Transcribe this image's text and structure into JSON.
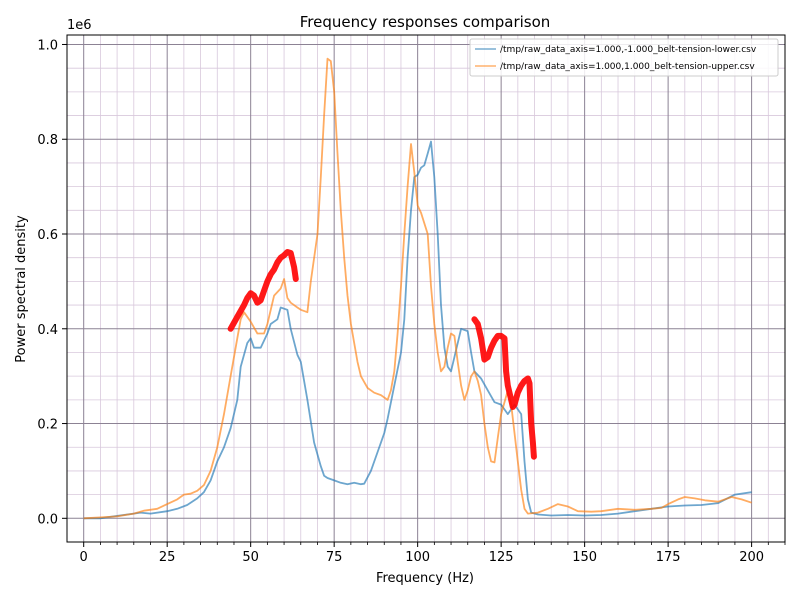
{
  "chart_data": {
    "type": "line",
    "title": "Frequency responses comparison",
    "xlabel": "Frequency (Hz)",
    "ylabel": "Power spectral density",
    "y_offset_label": "1e6",
    "xlim": [
      -5,
      210
    ],
    "ylim": [
      -0.05,
      1.02
    ],
    "xticks": [
      0,
      25,
      50,
      75,
      100,
      125,
      150,
      175,
      200
    ],
    "yticks": [
      0.0,
      0.2,
      0.4,
      0.6,
      0.8,
      1.0
    ],
    "xticklabels": [
      "0",
      "25",
      "50",
      "75",
      "100",
      "125",
      "150",
      "175",
      "200"
    ],
    "yticklabels": [
      "0.0",
      "0.2",
      "0.4",
      "0.6",
      "0.8",
      "1.0"
    ],
    "x_minor_step": 5,
    "y_minor_step": 0.05,
    "grid": true,
    "legend_position": "top-right",
    "series": [
      {
        "name": "/tmp/raw_data_axis=1.000,-1.000_belt-tension-lower.csv",
        "color": "#1f77b4",
        "points": [
          [
            0,
            0.0
          ],
          [
            5,
            0.0
          ],
          [
            10,
            0.005
          ],
          [
            15,
            0.01
          ],
          [
            17,
            0.012
          ],
          [
            20,
            0.01
          ],
          [
            25,
            0.015
          ],
          [
            28,
            0.02
          ],
          [
            31,
            0.028
          ],
          [
            34,
            0.042
          ],
          [
            36,
            0.055
          ],
          [
            38,
            0.08
          ],
          [
            40,
            0.12
          ],
          [
            42,
            0.15
          ],
          [
            44,
            0.19
          ],
          [
            46,
            0.25
          ],
          [
            47,
            0.32
          ],
          [
            49,
            0.37
          ],
          [
            50,
            0.38
          ],
          [
            51,
            0.36
          ],
          [
            53,
            0.36
          ],
          [
            55,
            0.39
          ],
          [
            56,
            0.41
          ],
          [
            58,
            0.42
          ],
          [
            59,
            0.445
          ],
          [
            61,
            0.44
          ],
          [
            62,
            0.4
          ],
          [
            64,
            0.345
          ],
          [
            65,
            0.33
          ],
          [
            67,
            0.25
          ],
          [
            69,
            0.16
          ],
          [
            71,
            0.11
          ],
          [
            72,
            0.09
          ],
          [
            73,
            0.085
          ],
          [
            75,
            0.08
          ],
          [
            77,
            0.075
          ],
          [
            79,
            0.072
          ],
          [
            81,
            0.075
          ],
          [
            83,
            0.072
          ],
          [
            84,
            0.073
          ],
          [
            86,
            0.1
          ],
          [
            88,
            0.14
          ],
          [
            90,
            0.18
          ],
          [
            91,
            0.21
          ],
          [
            93,
            0.28
          ],
          [
            95,
            0.35
          ],
          [
            96,
            0.42
          ],
          [
            97,
            0.55
          ],
          [
            98,
            0.65
          ],
          [
            99,
            0.72
          ],
          [
            100,
            0.725
          ],
          [
            101,
            0.74
          ],
          [
            102,
            0.745
          ],
          [
            103,
            0.77
          ],
          [
            104,
            0.795
          ],
          [
            105,
            0.72
          ],
          [
            106,
            0.6
          ],
          [
            107,
            0.45
          ],
          [
            108,
            0.36
          ],
          [
            109,
            0.32
          ],
          [
            110,
            0.31
          ],
          [
            111,
            0.34
          ],
          [
            113,
            0.4
          ],
          [
            115,
            0.395
          ],
          [
            116,
            0.35
          ],
          [
            117,
            0.31
          ],
          [
            119,
            0.295
          ],
          [
            121,
            0.27
          ],
          [
            123,
            0.245
          ],
          [
            125,
            0.24
          ],
          [
            127,
            0.22
          ],
          [
            129,
            0.24
          ],
          [
            131,
            0.22
          ],
          [
            132,
            0.12
          ],
          [
            133,
            0.04
          ],
          [
            134,
            0.012
          ],
          [
            136,
            0.008
          ],
          [
            140,
            0.006
          ],
          [
            145,
            0.007
          ],
          [
            150,
            0.006
          ],
          [
            155,
            0.007
          ],
          [
            160,
            0.01
          ],
          [
            165,
            0.015
          ],
          [
            170,
            0.02
          ],
          [
            175,
            0.025
          ],
          [
            180,
            0.027
          ],
          [
            185,
            0.028
          ],
          [
            190,
            0.032
          ],
          [
            195,
            0.05
          ],
          [
            200,
            0.055
          ]
        ]
      },
      {
        "name": "/tmp/raw_data_axis=1.000,1.000_belt-tension-upper.csv",
        "color": "#ff7f0e",
        "points": [
          [
            0,
            0.0
          ],
          [
            5,
            0.002
          ],
          [
            10,
            0.004
          ],
          [
            15,
            0.01
          ],
          [
            18,
            0.016
          ],
          [
            22,
            0.02
          ],
          [
            25,
            0.03
          ],
          [
            28,
            0.04
          ],
          [
            30,
            0.05
          ],
          [
            32,
            0.052
          ],
          [
            34,
            0.058
          ],
          [
            36,
            0.07
          ],
          [
            38,
            0.1
          ],
          [
            40,
            0.15
          ],
          [
            42,
            0.22
          ],
          [
            44,
            0.3
          ],
          [
            46,
            0.38
          ],
          [
            47,
            0.42
          ],
          [
            48,
            0.435
          ],
          [
            50,
            0.415
          ],
          [
            52,
            0.39
          ],
          [
            54,
            0.39
          ],
          [
            55,
            0.41
          ],
          [
            57,
            0.47
          ],
          [
            59,
            0.485
          ],
          [
            60,
            0.505
          ],
          [
            61,
            0.465
          ],
          [
            62,
            0.455
          ],
          [
            64,
            0.445
          ],
          [
            65,
            0.44
          ],
          [
            67,
            0.435
          ],
          [
            68,
            0.5
          ],
          [
            70,
            0.6
          ],
          [
            71,
            0.72
          ],
          [
            72,
            0.85
          ],
          [
            73,
            0.97
          ],
          [
            74,
            0.965
          ],
          [
            75,
            0.9
          ],
          [
            76,
            0.77
          ],
          [
            77,
            0.65
          ],
          [
            78,
            0.55
          ],
          [
            79,
            0.47
          ],
          [
            80,
            0.41
          ],
          [
            81,
            0.37
          ],
          [
            82,
            0.33
          ],
          [
            83,
            0.3
          ],
          [
            85,
            0.275
          ],
          [
            87,
            0.265
          ],
          [
            89,
            0.26
          ],
          [
            91,
            0.25
          ],
          [
            92,
            0.27
          ],
          [
            93,
            0.31
          ],
          [
            94,
            0.39
          ],
          [
            95,
            0.49
          ],
          [
            96,
            0.6
          ],
          [
            97,
            0.7
          ],
          [
            98,
            0.79
          ],
          [
            99,
            0.73
          ],
          [
            100,
            0.66
          ],
          [
            101,
            0.645
          ],
          [
            103,
            0.6
          ],
          [
            104,
            0.49
          ],
          [
            105,
            0.41
          ],
          [
            106,
            0.35
          ],
          [
            107,
            0.31
          ],
          [
            108,
            0.32
          ],
          [
            109,
            0.36
          ],
          [
            110,
            0.39
          ],
          [
            111,
            0.385
          ],
          [
            112,
            0.33
          ],
          [
            113,
            0.28
          ],
          [
            114,
            0.25
          ],
          [
            115,
            0.27
          ],
          [
            116,
            0.3
          ],
          [
            117,
            0.31
          ],
          [
            118,
            0.29
          ],
          [
            119,
            0.26
          ],
          [
            120,
            0.2
          ],
          [
            121,
            0.15
          ],
          [
            122,
            0.12
          ],
          [
            123,
            0.118
          ],
          [
            124,
            0.17
          ],
          [
            125,
            0.22
          ],
          [
            126,
            0.245
          ],
          [
            127,
            0.27
          ],
          [
            128,
            0.24
          ],
          [
            129,
            0.18
          ],
          [
            130,
            0.12
          ],
          [
            131,
            0.06
          ],
          [
            132,
            0.02
          ],
          [
            133,
            0.01
          ],
          [
            136,
            0.012
          ],
          [
            139,
            0.02
          ],
          [
            142,
            0.03
          ],
          [
            145,
            0.025
          ],
          [
            148,
            0.015
          ],
          [
            152,
            0.014
          ],
          [
            155,
            0.015
          ],
          [
            160,
            0.02
          ],
          [
            165,
            0.018
          ],
          [
            170,
            0.02
          ],
          [
            173,
            0.022
          ],
          [
            175,
            0.03
          ],
          [
            178,
            0.04
          ],
          [
            180,
            0.045
          ],
          [
            183,
            0.042
          ],
          [
            186,
            0.038
          ],
          [
            190,
            0.035
          ],
          [
            194,
            0.045
          ],
          [
            197,
            0.04
          ],
          [
            200,
            0.033
          ]
        ]
      }
    ],
    "annotations": [
      {
        "type": "freehand-highlight",
        "color": "#ff0000",
        "points": [
          [
            44,
            0.4
          ],
          [
            46,
            0.425
          ],
          [
            48,
            0.45
          ],
          [
            49,
            0.465
          ],
          [
            50,
            0.475
          ],
          [
            51,
            0.47
          ],
          [
            52,
            0.455
          ],
          [
            53,
            0.46
          ],
          [
            54,
            0.48
          ],
          [
            55,
            0.5
          ],
          [
            56,
            0.515
          ],
          [
            57,
            0.525
          ],
          [
            58,
            0.54
          ],
          [
            59,
            0.55
          ],
          [
            60,
            0.555
          ],
          [
            61,
            0.562
          ],
          [
            62,
            0.56
          ],
          [
            63,
            0.53
          ],
          [
            63.5,
            0.505
          ]
        ]
      },
      {
        "type": "freehand-highlight",
        "color": "#ff0000",
        "points": [
          [
            117,
            0.42
          ],
          [
            118,
            0.41
          ],
          [
            119,
            0.38
          ],
          [
            120,
            0.335
          ],
          [
            121,
            0.34
          ],
          [
            122,
            0.36
          ],
          [
            123,
            0.375
          ],
          [
            124,
            0.385
          ],
          [
            125,
            0.385
          ],
          [
            126,
            0.38
          ],
          [
            126.5,
            0.31
          ],
          [
            127,
            0.28
          ],
          [
            128,
            0.25
          ],
          [
            128.5,
            0.235
          ],
          [
            129,
            0.24
          ],
          [
            130,
            0.265
          ],
          [
            131,
            0.28
          ],
          [
            132,
            0.29
          ],
          [
            133,
            0.295
          ],
          [
            133.5,
            0.285
          ],
          [
            134,
            0.2
          ],
          [
            134.5,
            0.16
          ],
          [
            134.8,
            0.13
          ]
        ]
      }
    ]
  }
}
